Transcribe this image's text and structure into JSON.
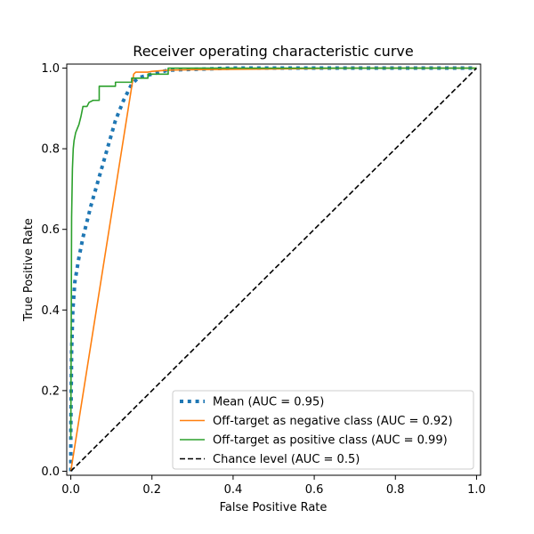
{
  "chart_data": {
    "type": "line",
    "title": "Receiver operating characteristic curve",
    "xlabel": "False Positive Rate",
    "ylabel": "True Positive Rate",
    "xlim": [
      -0.01,
      1.01
    ],
    "ylim": [
      -0.01,
      1.01
    ],
    "xticks": [
      "0.0",
      "0.2",
      "0.4",
      "0.6",
      "0.8",
      "1.0"
    ],
    "yticks": [
      "0.0",
      "0.2",
      "0.4",
      "0.6",
      "0.8",
      "1.0"
    ],
    "grid": false,
    "legend_position": "lower-right",
    "series": [
      {
        "name": "Mean (AUC = 0.95)",
        "color": "#1f77b4",
        "style": "dotted",
        "x": [
          0.0,
          0.0,
          0.002,
          0.005,
          0.01,
          0.02,
          0.03,
          0.05,
          0.07,
          0.09,
          0.11,
          0.13,
          0.15,
          0.165,
          0.18,
          0.2,
          0.24,
          0.4,
          0.6,
          0.8,
          1.0
        ],
        "y": [
          0.0,
          0.1,
          0.3,
          0.4,
          0.47,
          0.53,
          0.58,
          0.66,
          0.73,
          0.8,
          0.87,
          0.92,
          0.96,
          0.975,
          0.98,
          0.985,
          0.995,
          1.0,
          1.0,
          1.0,
          1.0
        ]
      },
      {
        "name": "Off-target as negative class (AUC = 0.92)",
        "color": "#ff7f0e",
        "style": "solid",
        "x": [
          0.0,
          0.155,
          0.16,
          0.19,
          0.2,
          0.24,
          0.3,
          0.5,
          0.7,
          1.0
        ],
        "y": [
          0.0,
          0.985,
          0.99,
          0.99,
          0.992,
          0.995,
          0.996,
          0.998,
          1.0,
          1.0
        ]
      },
      {
        "name": "Off-target as positive class (AUC = 0.99)",
        "color": "#2ca02c",
        "style": "solid",
        "x": [
          0.0,
          0.002,
          0.004,
          0.006,
          0.008,
          0.012,
          0.016,
          0.02,
          0.025,
          0.03,
          0.04,
          0.045,
          0.055,
          0.07,
          0.07,
          0.11,
          0.11,
          0.15,
          0.15,
          0.19,
          0.19,
          0.24,
          0.24,
          0.5,
          1.0
        ],
        "y": [
          0.08,
          0.63,
          0.75,
          0.8,
          0.82,
          0.84,
          0.85,
          0.86,
          0.88,
          0.905,
          0.905,
          0.915,
          0.92,
          0.92,
          0.955,
          0.955,
          0.965,
          0.965,
          0.975,
          0.975,
          0.985,
          0.985,
          1.0,
          1.0,
          1.0
        ]
      },
      {
        "name": "Chance level (AUC = 0.5)",
        "color": "#000000",
        "style": "dashed",
        "x": [
          0.0,
          1.0
        ],
        "y": [
          0.0,
          1.0
        ]
      }
    ]
  }
}
